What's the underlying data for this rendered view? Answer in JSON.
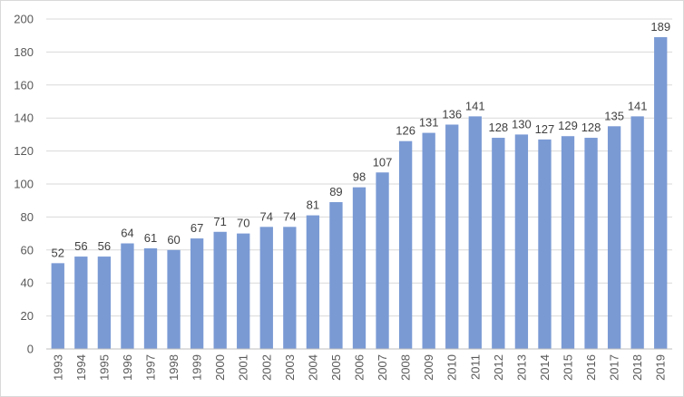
{
  "chart_data": {
    "type": "bar",
    "title": "",
    "xlabel": "",
    "ylabel": "",
    "ylim": [
      0,
      200
    ],
    "yticks": [
      0,
      20,
      40,
      60,
      80,
      100,
      120,
      140,
      160,
      180,
      200
    ],
    "grid": true,
    "legend": "none",
    "bar_color": "#7a9ad4",
    "categories": [
      "1993",
      "1994",
      "1995",
      "1996",
      "1997",
      "1998",
      "1999",
      "2000",
      "2001",
      "2002",
      "2003",
      "2004",
      "2005",
      "2006",
      "2007",
      "2008",
      "2009",
      "2010",
      "2011",
      "2012",
      "2013",
      "2014",
      "2015",
      "2016",
      "2017",
      "2018",
      "2019"
    ],
    "values": [
      52,
      56,
      56,
      64,
      61,
      60,
      67,
      71,
      70,
      74,
      74,
      81,
      89,
      98,
      107,
      126,
      131,
      136,
      141,
      128,
      130,
      127,
      129,
      128,
      135,
      141,
      189
    ]
  }
}
